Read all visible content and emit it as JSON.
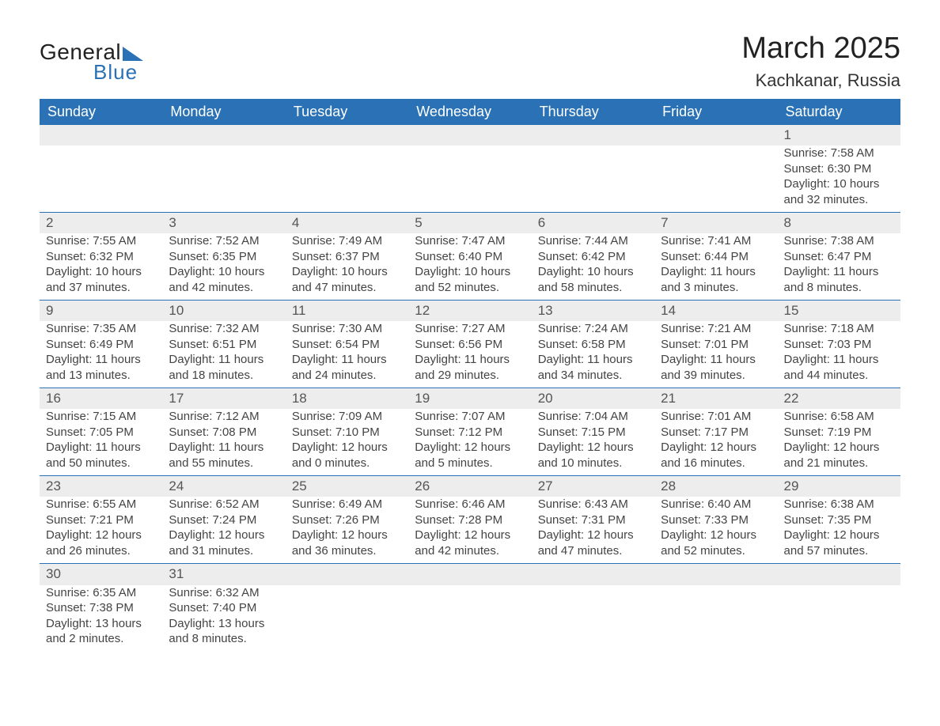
{
  "logo": {
    "text1": "General",
    "text2": "Blue"
  },
  "title": "March 2025",
  "location": "Kachkanar, Russia",
  "colors": {
    "header_bg": "#2a72b5",
    "header_text": "#ffffff",
    "row_band_bg": "#ededed",
    "row_border": "#2a72b5",
    "body_text": "#444444",
    "page_bg": "#ffffff",
    "title_color": "#222222"
  },
  "typography": {
    "title_fontsize": 38,
    "location_fontsize": 22,
    "weekday_fontsize": 18,
    "daynum_fontsize": 17,
    "cell_fontsize": 15,
    "font_family": "Arial"
  },
  "weekdays": [
    "Sunday",
    "Monday",
    "Tuesday",
    "Wednesday",
    "Thursday",
    "Friday",
    "Saturday"
  ],
  "weeks": [
    [
      null,
      null,
      null,
      null,
      null,
      null,
      {
        "n": "1",
        "sunrise": "Sunrise: 7:58 AM",
        "sunset": "Sunset: 6:30 PM",
        "d1": "Daylight: 10 hours",
        "d2": "and 32 minutes."
      }
    ],
    [
      {
        "n": "2",
        "sunrise": "Sunrise: 7:55 AM",
        "sunset": "Sunset: 6:32 PM",
        "d1": "Daylight: 10 hours",
        "d2": "and 37 minutes."
      },
      {
        "n": "3",
        "sunrise": "Sunrise: 7:52 AM",
        "sunset": "Sunset: 6:35 PM",
        "d1": "Daylight: 10 hours",
        "d2": "and 42 minutes."
      },
      {
        "n": "4",
        "sunrise": "Sunrise: 7:49 AM",
        "sunset": "Sunset: 6:37 PM",
        "d1": "Daylight: 10 hours",
        "d2": "and 47 minutes."
      },
      {
        "n": "5",
        "sunrise": "Sunrise: 7:47 AM",
        "sunset": "Sunset: 6:40 PM",
        "d1": "Daylight: 10 hours",
        "d2": "and 52 minutes."
      },
      {
        "n": "6",
        "sunrise": "Sunrise: 7:44 AM",
        "sunset": "Sunset: 6:42 PM",
        "d1": "Daylight: 10 hours",
        "d2": "and 58 minutes."
      },
      {
        "n": "7",
        "sunrise": "Sunrise: 7:41 AM",
        "sunset": "Sunset: 6:44 PM",
        "d1": "Daylight: 11 hours",
        "d2": "and 3 minutes."
      },
      {
        "n": "8",
        "sunrise": "Sunrise: 7:38 AM",
        "sunset": "Sunset: 6:47 PM",
        "d1": "Daylight: 11 hours",
        "d2": "and 8 minutes."
      }
    ],
    [
      {
        "n": "9",
        "sunrise": "Sunrise: 7:35 AM",
        "sunset": "Sunset: 6:49 PM",
        "d1": "Daylight: 11 hours",
        "d2": "and 13 minutes."
      },
      {
        "n": "10",
        "sunrise": "Sunrise: 7:32 AM",
        "sunset": "Sunset: 6:51 PM",
        "d1": "Daylight: 11 hours",
        "d2": "and 18 minutes."
      },
      {
        "n": "11",
        "sunrise": "Sunrise: 7:30 AM",
        "sunset": "Sunset: 6:54 PM",
        "d1": "Daylight: 11 hours",
        "d2": "and 24 minutes."
      },
      {
        "n": "12",
        "sunrise": "Sunrise: 7:27 AM",
        "sunset": "Sunset: 6:56 PM",
        "d1": "Daylight: 11 hours",
        "d2": "and 29 minutes."
      },
      {
        "n": "13",
        "sunrise": "Sunrise: 7:24 AM",
        "sunset": "Sunset: 6:58 PM",
        "d1": "Daylight: 11 hours",
        "d2": "and 34 minutes."
      },
      {
        "n": "14",
        "sunrise": "Sunrise: 7:21 AM",
        "sunset": "Sunset: 7:01 PM",
        "d1": "Daylight: 11 hours",
        "d2": "and 39 minutes."
      },
      {
        "n": "15",
        "sunrise": "Sunrise: 7:18 AM",
        "sunset": "Sunset: 7:03 PM",
        "d1": "Daylight: 11 hours",
        "d2": "and 44 minutes."
      }
    ],
    [
      {
        "n": "16",
        "sunrise": "Sunrise: 7:15 AM",
        "sunset": "Sunset: 7:05 PM",
        "d1": "Daylight: 11 hours",
        "d2": "and 50 minutes."
      },
      {
        "n": "17",
        "sunrise": "Sunrise: 7:12 AM",
        "sunset": "Sunset: 7:08 PM",
        "d1": "Daylight: 11 hours",
        "d2": "and 55 minutes."
      },
      {
        "n": "18",
        "sunrise": "Sunrise: 7:09 AM",
        "sunset": "Sunset: 7:10 PM",
        "d1": "Daylight: 12 hours",
        "d2": "and 0 minutes."
      },
      {
        "n": "19",
        "sunrise": "Sunrise: 7:07 AM",
        "sunset": "Sunset: 7:12 PM",
        "d1": "Daylight: 12 hours",
        "d2": "and 5 minutes."
      },
      {
        "n": "20",
        "sunrise": "Sunrise: 7:04 AM",
        "sunset": "Sunset: 7:15 PM",
        "d1": "Daylight: 12 hours",
        "d2": "and 10 minutes."
      },
      {
        "n": "21",
        "sunrise": "Sunrise: 7:01 AM",
        "sunset": "Sunset: 7:17 PM",
        "d1": "Daylight: 12 hours",
        "d2": "and 16 minutes."
      },
      {
        "n": "22",
        "sunrise": "Sunrise: 6:58 AM",
        "sunset": "Sunset: 7:19 PM",
        "d1": "Daylight: 12 hours",
        "d2": "and 21 minutes."
      }
    ],
    [
      {
        "n": "23",
        "sunrise": "Sunrise: 6:55 AM",
        "sunset": "Sunset: 7:21 PM",
        "d1": "Daylight: 12 hours",
        "d2": "and 26 minutes."
      },
      {
        "n": "24",
        "sunrise": "Sunrise: 6:52 AM",
        "sunset": "Sunset: 7:24 PM",
        "d1": "Daylight: 12 hours",
        "d2": "and 31 minutes."
      },
      {
        "n": "25",
        "sunrise": "Sunrise: 6:49 AM",
        "sunset": "Sunset: 7:26 PM",
        "d1": "Daylight: 12 hours",
        "d2": "and 36 minutes."
      },
      {
        "n": "26",
        "sunrise": "Sunrise: 6:46 AM",
        "sunset": "Sunset: 7:28 PM",
        "d1": "Daylight: 12 hours",
        "d2": "and 42 minutes."
      },
      {
        "n": "27",
        "sunrise": "Sunrise: 6:43 AM",
        "sunset": "Sunset: 7:31 PM",
        "d1": "Daylight: 12 hours",
        "d2": "and 47 minutes."
      },
      {
        "n": "28",
        "sunrise": "Sunrise: 6:40 AM",
        "sunset": "Sunset: 7:33 PM",
        "d1": "Daylight: 12 hours",
        "d2": "and 52 minutes."
      },
      {
        "n": "29",
        "sunrise": "Sunrise: 6:38 AM",
        "sunset": "Sunset: 7:35 PM",
        "d1": "Daylight: 12 hours",
        "d2": "and 57 minutes."
      }
    ],
    [
      {
        "n": "30",
        "sunrise": "Sunrise: 6:35 AM",
        "sunset": "Sunset: 7:38 PM",
        "d1": "Daylight: 13 hours",
        "d2": "and 2 minutes."
      },
      {
        "n": "31",
        "sunrise": "Sunrise: 6:32 AM",
        "sunset": "Sunset: 7:40 PM",
        "d1": "Daylight: 13 hours",
        "d2": "and 8 minutes."
      },
      null,
      null,
      null,
      null,
      null
    ]
  ]
}
